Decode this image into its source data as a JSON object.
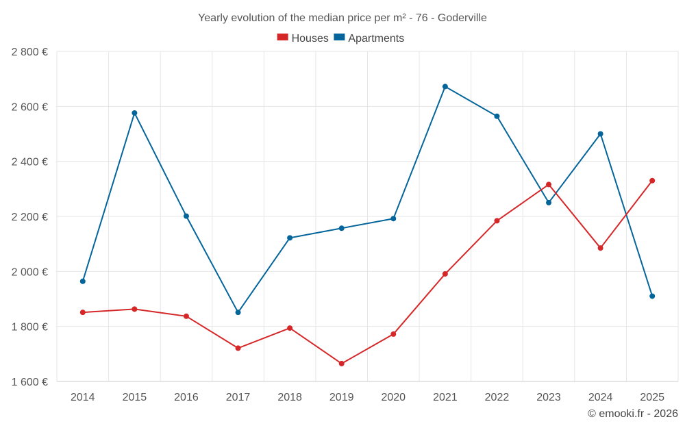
{
  "chart_data": {
    "type": "line",
    "title": "Yearly evolution of the median price per m² - 76 - Goderville",
    "categories": [
      "2014",
      "2015",
      "2016",
      "2017",
      "2018",
      "2019",
      "2020",
      "2021",
      "2022",
      "2023",
      "2024",
      "2025"
    ],
    "series": [
      {
        "name": "Houses",
        "color": "#d62728",
        "values": [
          1851,
          1863,
          1837,
          1721,
          1794,
          1665,
          1772,
          1991,
          2184,
          2316,
          2085,
          2330
        ]
      },
      {
        "name": "Apartments",
        "color": "#04659b",
        "values": [
          1964,
          2576,
          2201,
          1851,
          2122,
          2157,
          2192,
          2672,
          2564,
          2250,
          2500,
          1910
        ]
      }
    ],
    "ylim": [
      1600,
      2800
    ],
    "yticks": [
      1600,
      1800,
      2000,
      2200,
      2400,
      2600,
      2800
    ],
    "ytick_labels": [
      "1 600 €",
      "1 800 €",
      "2 000 €",
      "2 200 €",
      "2 400 €",
      "2 600 €",
      "2 800 €"
    ],
    "xlabel": "",
    "ylabel": "",
    "legend_position": "top-center",
    "grid": true
  },
  "copyright": "© emooki.fr - 2026"
}
